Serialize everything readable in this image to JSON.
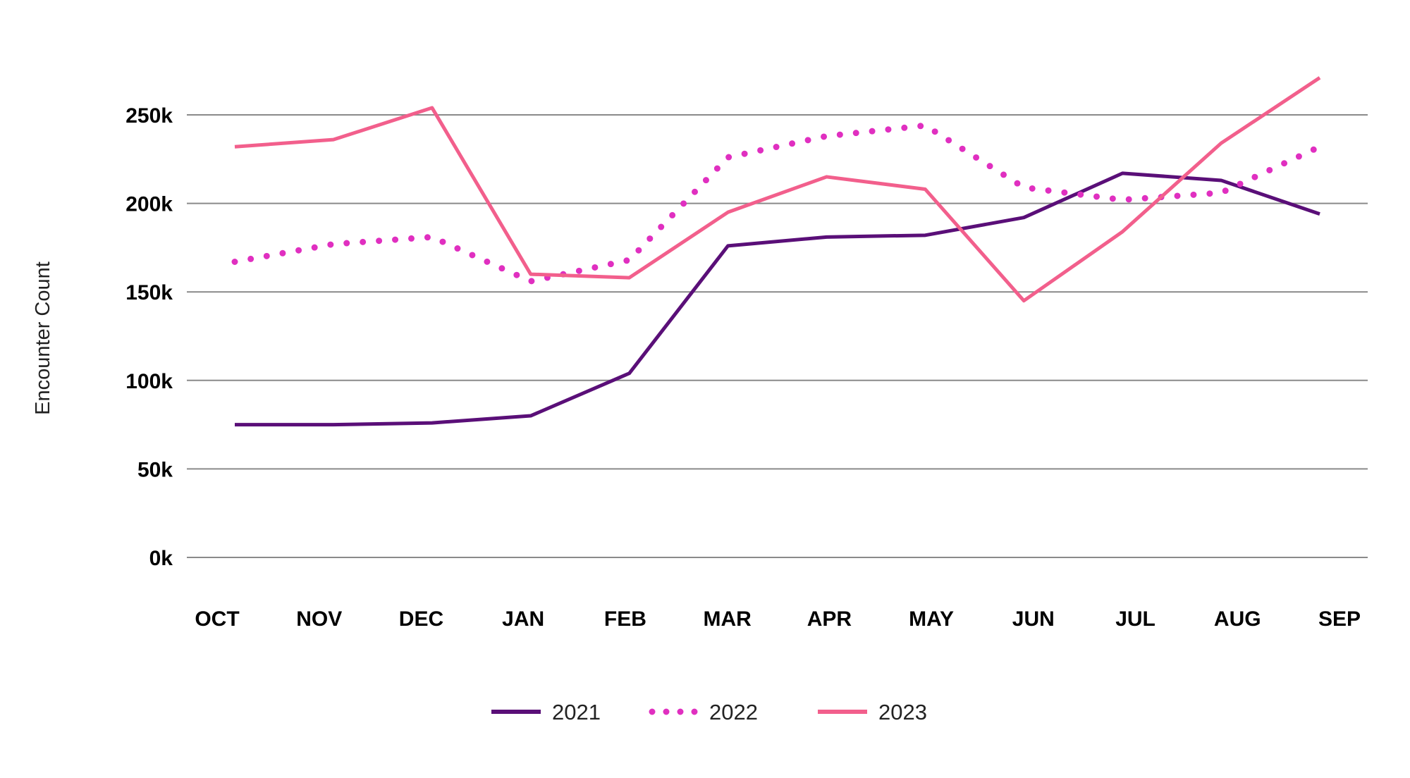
{
  "chart_data": {
    "type": "line",
    "categories": [
      "OCT",
      "NOV",
      "DEC",
      "JAN",
      "FEB",
      "MAR",
      "APR",
      "MAY",
      "JUN",
      "JUL",
      "AUG",
      "SEP"
    ],
    "series": [
      {
        "name": "2021",
        "values": [
          75000,
          75000,
          76000,
          80000,
          104000,
          176000,
          181000,
          182000,
          192000,
          217000,
          213000,
          194000
        ],
        "color": "#5a0f78",
        "style": "solid"
      },
      {
        "name": "2022",
        "values": [
          167000,
          177000,
          181000,
          156000,
          168000,
          226000,
          238000,
          244000,
          209000,
          202000,
          206000,
          232000
        ],
        "color": "#e02fc0",
        "style": "dotted"
      },
      {
        "name": "2023",
        "values": [
          232000,
          236000,
          254000,
          160000,
          158000,
          195000,
          215000,
          208000,
          145000,
          184000,
          234000,
          271000
        ],
        "color": "#f25f8c",
        "style": "solid"
      }
    ],
    "yticks": [
      0,
      50000,
      100000,
      150000,
      200000,
      250000
    ],
    "ytick_labels": [
      "0k",
      "50k",
      "100k",
      "150k",
      "200k",
      "250k"
    ],
    "ylim": [
      0,
      285000
    ],
    "ylabel": "Encounter Count",
    "xlabel": "",
    "title": "",
    "grid": "horizontal",
    "legend_position": "bottom-center"
  }
}
